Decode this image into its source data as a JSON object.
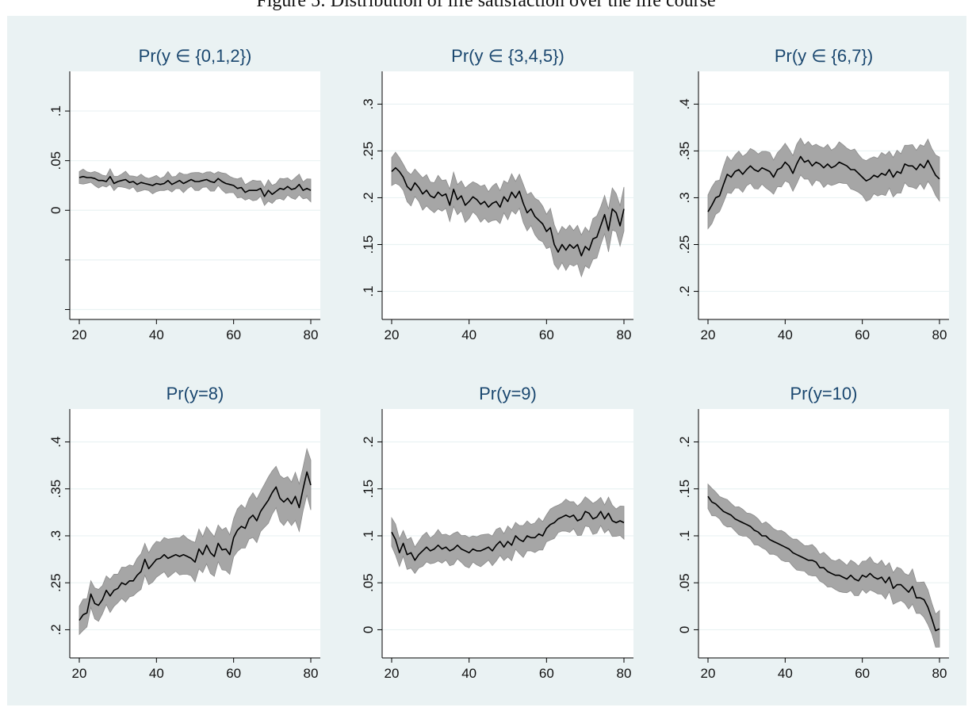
{
  "figure": {
    "caption": "Figure 5: Distribution of life satisfaction over the life course"
  },
  "colors": {
    "figure_background": "#eaf2f3",
    "plot_background": "#ffffff",
    "ci_band": "#a6a6a6",
    "ci_band_edge": "#8c8c8c",
    "line": "#000000",
    "title": "#1a476f",
    "grid": "#eaf2f3"
  },
  "chart_data": [
    {
      "type": "line",
      "title": "Pr(y ∈ {0,1,2})",
      "xlabel": "",
      "ylabel": "",
      "xlim": [
        20,
        80
      ],
      "ylim": [
        -0.11,
        0.14
      ],
      "grid": true,
      "x_ticks": [
        20,
        40,
        60,
        80
      ],
      "x_tick_labels": [
        "20",
        "40",
        "60",
        "80"
      ],
      "y_ticks": [
        -0.1,
        -0.05,
        0,
        0.05,
        0.1
      ],
      "y_tick_labels": [
        "",
        "",
        "0",
        ".05",
        ".1"
      ],
      "ci_halfwidth_start": 0.006,
      "ci_halfwidth_end": 0.01,
      "x": [
        20,
        21,
        22,
        23,
        24,
        25,
        26,
        27,
        28,
        29,
        30,
        31,
        32,
        33,
        34,
        35,
        36,
        37,
        38,
        39,
        40,
        41,
        42,
        43,
        44,
        45,
        46,
        47,
        48,
        49,
        50,
        51,
        52,
        53,
        54,
        55,
        56,
        57,
        58,
        59,
        60,
        61,
        62,
        63,
        64,
        65,
        66,
        67,
        68,
        69,
        70,
        71,
        72,
        73,
        74,
        75,
        76,
        77,
        78,
        79,
        80
      ],
      "values": [
        0.033,
        0.034,
        0.033,
        0.033,
        0.032,
        0.03,
        0.03,
        0.029,
        0.034,
        0.027,
        0.029,
        0.03,
        0.031,
        0.028,
        0.029,
        0.026,
        0.028,
        0.027,
        0.026,
        0.025,
        0.027,
        0.026,
        0.027,
        0.03,
        0.026,
        0.028,
        0.03,
        0.027,
        0.029,
        0.031,
        0.029,
        0.029,
        0.03,
        0.031,
        0.029,
        0.028,
        0.032,
        0.029,
        0.027,
        0.026,
        0.025,
        0.022,
        0.023,
        0.018,
        0.02,
        0.02,
        0.02,
        0.022,
        0.014,
        0.02,
        0.016,
        0.019,
        0.022,
        0.021,
        0.024,
        0.021,
        0.022,
        0.026,
        0.02,
        0.022,
        0.02
      ]
    },
    {
      "type": "line",
      "title": "Pr(y ∈ {3,4,5})",
      "xlabel": "",
      "ylabel": "",
      "xlim": [
        20,
        80
      ],
      "ylim": [
        0.07,
        0.335
      ],
      "grid": true,
      "x_ticks": [
        20,
        40,
        60,
        80
      ],
      "x_tick_labels": [
        "20",
        "40",
        "60",
        "80"
      ],
      "y_ticks": [
        0.1,
        0.15,
        0.2,
        0.25,
        0.3
      ],
      "y_tick_labels": [
        ".1",
        ".15",
        ".2",
        ".25",
        ".3"
      ],
      "ci_halfwidth_start": 0.015,
      "ci_halfwidth_end": 0.022,
      "x": [
        20,
        21,
        22,
        23,
        24,
        25,
        26,
        27,
        28,
        29,
        30,
        31,
        32,
        33,
        34,
        35,
        36,
        37,
        38,
        39,
        40,
        41,
        42,
        43,
        44,
        45,
        46,
        47,
        48,
        49,
        50,
        51,
        52,
        53,
        54,
        55,
        56,
        57,
        58,
        59,
        60,
        61,
        62,
        63,
        64,
        65,
        66,
        67,
        68,
        69,
        70,
        71,
        72,
        73,
        74,
        75,
        76,
        77,
        78,
        79,
        80
      ],
      "values": [
        0.228,
        0.232,
        0.228,
        0.222,
        0.212,
        0.208,
        0.216,
        0.211,
        0.204,
        0.208,
        0.202,
        0.2,
        0.206,
        0.202,
        0.204,
        0.192,
        0.209,
        0.198,
        0.202,
        0.192,
        0.196,
        0.201,
        0.198,
        0.193,
        0.196,
        0.19,
        0.194,
        0.196,
        0.19,
        0.201,
        0.196,
        0.206,
        0.2,
        0.207,
        0.194,
        0.184,
        0.188,
        0.18,
        0.176,
        0.172,
        0.164,
        0.168,
        0.15,
        0.142,
        0.15,
        0.144,
        0.15,
        0.146,
        0.15,
        0.138,
        0.148,
        0.144,
        0.156,
        0.158,
        0.17,
        0.182,
        0.165,
        0.188,
        0.184,
        0.17,
        0.188
      ]
    },
    {
      "type": "line",
      "title": "Pr(y ∈ {6,7})",
      "xlabel": "",
      "ylabel": "",
      "xlim": [
        20,
        80
      ],
      "ylim": [
        0.17,
        0.435
      ],
      "grid": true,
      "x_ticks": [
        20,
        40,
        60,
        80
      ],
      "x_tick_labels": [
        "20",
        "40",
        "60",
        "80"
      ],
      "y_ticks": [
        0.2,
        0.25,
        0.3,
        0.35,
        0.4
      ],
      "y_tick_labels": [
        ".2",
        ".25",
        ".3",
        ".35",
        ".4"
      ],
      "ci_halfwidth_start": 0.018,
      "ci_halfwidth_end": 0.022,
      "x": [
        20,
        21,
        22,
        23,
        24,
        25,
        26,
        27,
        28,
        29,
        30,
        31,
        32,
        33,
        34,
        35,
        36,
        37,
        38,
        39,
        40,
        41,
        42,
        43,
        44,
        45,
        46,
        47,
        48,
        49,
        50,
        51,
        52,
        53,
        54,
        55,
        56,
        57,
        58,
        59,
        60,
        61,
        62,
        63,
        64,
        65,
        66,
        67,
        68,
        69,
        70,
        71,
        72,
        73,
        74,
        75,
        76,
        77,
        78,
        79,
        80
      ],
      "values": [
        0.285,
        0.292,
        0.3,
        0.302,
        0.314,
        0.325,
        0.322,
        0.328,
        0.33,
        0.325,
        0.33,
        0.334,
        0.33,
        0.328,
        0.332,
        0.33,
        0.328,
        0.322,
        0.33,
        0.332,
        0.338,
        0.334,
        0.326,
        0.336,
        0.344,
        0.338,
        0.34,
        0.334,
        0.338,
        0.336,
        0.332,
        0.336,
        0.332,
        0.334,
        0.338,
        0.336,
        0.334,
        0.33,
        0.33,
        0.326,
        0.322,
        0.318,
        0.32,
        0.324,
        0.322,
        0.326,
        0.324,
        0.33,
        0.322,
        0.328,
        0.326,
        0.336,
        0.334,
        0.334,
        0.33,
        0.336,
        0.332,
        0.34,
        0.332,
        0.324,
        0.32
      ]
    },
    {
      "type": "line",
      "title": "Pr(y=8)",
      "xlabel": "",
      "ylabel": "",
      "xlim": [
        20,
        80
      ],
      "ylim": [
        0.17,
        0.435
      ],
      "grid": true,
      "x_ticks": [
        20,
        40,
        60,
        80
      ],
      "x_tick_labels": [
        "20",
        "40",
        "60",
        "80"
      ],
      "y_ticks": [
        0.2,
        0.25,
        0.3,
        0.35,
        0.4
      ],
      "y_tick_labels": [
        ".2",
        ".25",
        ".3",
        ".35",
        ".4"
      ],
      "ci_halfwidth_start": 0.015,
      "ci_halfwidth_end": 0.025,
      "x": [
        20,
        21,
        22,
        23,
        24,
        25,
        26,
        27,
        28,
        29,
        30,
        31,
        32,
        33,
        34,
        35,
        36,
        37,
        38,
        39,
        40,
        41,
        42,
        43,
        44,
        45,
        46,
        47,
        48,
        49,
        50,
        51,
        52,
        53,
        54,
        55,
        56,
        57,
        58,
        59,
        60,
        61,
        62,
        63,
        64,
        65,
        66,
        67,
        68,
        69,
        70,
        71,
        72,
        73,
        74,
        75,
        76,
        77,
        78,
        79,
        80
      ],
      "values": [
        0.21,
        0.216,
        0.218,
        0.238,
        0.228,
        0.226,
        0.232,
        0.242,
        0.236,
        0.242,
        0.244,
        0.25,
        0.248,
        0.252,
        0.252,
        0.258,
        0.262,
        0.275,
        0.265,
        0.27,
        0.275,
        0.276,
        0.28,
        0.276,
        0.278,
        0.28,
        0.278,
        0.28,
        0.278,
        0.276,
        0.272,
        0.286,
        0.28,
        0.29,
        0.282,
        0.278,
        0.292,
        0.285,
        0.286,
        0.28,
        0.298,
        0.306,
        0.31,
        0.308,
        0.318,
        0.322,
        0.316,
        0.326,
        0.332,
        0.338,
        0.346,
        0.352,
        0.34,
        0.336,
        0.34,
        0.334,
        0.342,
        0.33,
        0.35,
        0.368,
        0.354
      ]
    },
    {
      "type": "line",
      "title": "Pr(y=9)",
      "xlabel": "",
      "ylabel": "",
      "xlim": [
        20,
        80
      ],
      "ylim": [
        -0.03,
        0.235
      ],
      "grid": true,
      "x_ticks": [
        20,
        40,
        60,
        80
      ],
      "x_tick_labels": [
        "20",
        "40",
        "60",
        "80"
      ],
      "y_ticks": [
        0,
        0.05,
        0.1,
        0.15,
        0.2
      ],
      "y_tick_labels": [
        "0",
        ".05",
        ".1",
        ".15",
        ".2"
      ],
      "ci_halfwidth_start": 0.015,
      "ci_halfwidth_end": 0.016,
      "x": [
        20,
        21,
        22,
        23,
        24,
        25,
        26,
        27,
        28,
        29,
        30,
        31,
        32,
        33,
        34,
        35,
        36,
        37,
        38,
        39,
        40,
        41,
        42,
        43,
        44,
        45,
        46,
        47,
        48,
        49,
        50,
        51,
        52,
        53,
        54,
        55,
        56,
        57,
        58,
        59,
        60,
        61,
        62,
        63,
        64,
        65,
        66,
        67,
        68,
        69,
        70,
        71,
        72,
        73,
        74,
        75,
        76,
        77,
        78,
        79,
        80
      ],
      "values": [
        0.104,
        0.096,
        0.082,
        0.092,
        0.08,
        0.082,
        0.074,
        0.08,
        0.084,
        0.088,
        0.084,
        0.086,
        0.09,
        0.086,
        0.088,
        0.084,
        0.086,
        0.09,
        0.086,
        0.084,
        0.082,
        0.086,
        0.084,
        0.084,
        0.086,
        0.088,
        0.084,
        0.09,
        0.094,
        0.088,
        0.094,
        0.09,
        0.1,
        0.096,
        0.094,
        0.1,
        0.098,
        0.098,
        0.102,
        0.1,
        0.108,
        0.112,
        0.114,
        0.118,
        0.12,
        0.122,
        0.12,
        0.122,
        0.116,
        0.118,
        0.126,
        0.124,
        0.118,
        0.12,
        0.126,
        0.118,
        0.124,
        0.116,
        0.114,
        0.116,
        0.114
      ]
    },
    {
      "type": "line",
      "title": "Pr(y=10)",
      "xlabel": "",
      "ylabel": "",
      "xlim": [
        20,
        80
      ],
      "ylim": [
        -0.03,
        0.235
      ],
      "grid": true,
      "x_ticks": [
        20,
        40,
        60,
        80
      ],
      "x_tick_labels": [
        "20",
        "40",
        "60",
        "80"
      ],
      "y_ticks": [
        0,
        0.05,
        0.1,
        0.15,
        0.2
      ],
      "y_tick_labels": [
        "0",
        ".05",
        ".1",
        ".15",
        ".2"
      ],
      "ci_halfwidth_start": 0.013,
      "ci_halfwidth_end": 0.018,
      "x": [
        20,
        21,
        22,
        23,
        24,
        25,
        26,
        27,
        28,
        29,
        30,
        31,
        32,
        33,
        34,
        35,
        36,
        37,
        38,
        39,
        40,
        41,
        42,
        43,
        44,
        45,
        46,
        47,
        48,
        49,
        50,
        51,
        52,
        53,
        54,
        55,
        56,
        57,
        58,
        59,
        60,
        61,
        62,
        63,
        64,
        65,
        66,
        67,
        68,
        69,
        70,
        71,
        72,
        73,
        74,
        75,
        76,
        77,
        78,
        79,
        80
      ],
      "values": [
        0.142,
        0.136,
        0.134,
        0.13,
        0.126,
        0.124,
        0.122,
        0.118,
        0.116,
        0.114,
        0.112,
        0.11,
        0.106,
        0.104,
        0.1,
        0.1,
        0.096,
        0.094,
        0.092,
        0.09,
        0.088,
        0.086,
        0.082,
        0.08,
        0.078,
        0.076,
        0.074,
        0.074,
        0.072,
        0.066,
        0.066,
        0.062,
        0.06,
        0.058,
        0.058,
        0.056,
        0.054,
        0.058,
        0.054,
        0.052,
        0.058,
        0.056,
        0.06,
        0.056,
        0.054,
        0.056,
        0.05,
        0.056,
        0.044,
        0.048,
        0.048,
        0.044,
        0.04,
        0.046,
        0.034,
        0.034,
        0.032,
        0.024,
        0.012,
        -0.001,
        0.001
      ]
    }
  ]
}
